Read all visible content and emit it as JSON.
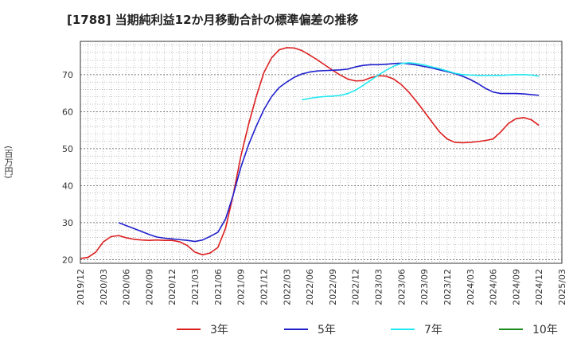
{
  "chart_data": {
    "type": "line",
    "title": "[1788]  当期純利益12か月移動合計の標準偏差の推移",
    "ylabel": "(百万円)",
    "xlabel": "",
    "ylim": [
      19,
      79
    ],
    "yticks": [
      20,
      30,
      40,
      50,
      60,
      70
    ],
    "xticks": [
      "2019/12",
      "2020/03",
      "2020/06",
      "2020/09",
      "2020/12",
      "2021/03",
      "2021/06",
      "2021/09",
      "2021/12",
      "2022/03",
      "2022/06",
      "2022/09",
      "2022/12",
      "2023/03",
      "2023/06",
      "2023/09",
      "2023/12",
      "2024/03",
      "2024/06",
      "2024/09",
      "2024/12",
      "2025/03"
    ],
    "grid": true,
    "series": [
      {
        "name": "3年",
        "color": "#dd1f1f",
        "points": [
          [
            0,
            20.3
          ],
          [
            1,
            20.6
          ],
          [
            2,
            22
          ],
          [
            3,
            24.8
          ],
          [
            4,
            26.2
          ],
          [
            5,
            26.5
          ],
          [
            6,
            25.9
          ],
          [
            7,
            25.5
          ],
          [
            8,
            25.3
          ],
          [
            9,
            25.2
          ],
          [
            10,
            25.3
          ],
          [
            11,
            25.2
          ],
          [
            12,
            25.2
          ],
          [
            13,
            24.8
          ],
          [
            14,
            23.8
          ],
          [
            15,
            22
          ],
          [
            16,
            21.3
          ],
          [
            17,
            21.8
          ],
          [
            18,
            23.3
          ],
          [
            19,
            28.5
          ],
          [
            20,
            37.5
          ],
          [
            21,
            48
          ],
          [
            22,
            56.5
          ],
          [
            23,
            64
          ],
          [
            24,
            70.5
          ],
          [
            25,
            74.5
          ],
          [
            26,
            76.7
          ],
          [
            27,
            77.3
          ],
          [
            28,
            77.2
          ],
          [
            29,
            76.5
          ],
          [
            30,
            75.3
          ],
          [
            31,
            74
          ],
          [
            32,
            72.6
          ],
          [
            33,
            71.2
          ],
          [
            34,
            69.9
          ],
          [
            35,
            68.8
          ],
          [
            36,
            68.3
          ],
          [
            37,
            68.4
          ],
          [
            38,
            69.2
          ],
          [
            39,
            69.7
          ],
          [
            40,
            69.6
          ],
          [
            41,
            68.8
          ],
          [
            42,
            67.3
          ],
          [
            43,
            65.2
          ],
          [
            44,
            62.7
          ],
          [
            45,
            60
          ],
          [
            46,
            57.2
          ],
          [
            47,
            54.5
          ],
          [
            48,
            52.6
          ],
          [
            49,
            51.7
          ],
          [
            50,
            51.6
          ],
          [
            51,
            51.7
          ],
          [
            52,
            51.9
          ],
          [
            53,
            52.2
          ],
          [
            54,
            52.6
          ],
          [
            55,
            54.5
          ],
          [
            56,
            56.8
          ],
          [
            57,
            58.1
          ],
          [
            58,
            58.4
          ],
          [
            59,
            57.8
          ],
          [
            60,
            56.3
          ]
        ]
      },
      {
        "name": "5年",
        "color": "#1f1fcc",
        "points": [
          [
            5,
            30
          ],
          [
            6,
            29.2
          ],
          [
            7,
            28.4
          ],
          [
            8,
            27.6
          ],
          [
            9,
            26.8
          ],
          [
            10,
            26.1
          ],
          [
            11,
            25.8
          ],
          [
            12,
            25.6
          ],
          [
            13,
            25.4
          ],
          [
            14,
            25.2
          ],
          [
            15,
            24.9
          ],
          [
            16,
            25.3
          ],
          [
            17,
            26.3
          ],
          [
            18,
            27.4
          ],
          [
            19,
            31
          ],
          [
            20,
            37.5
          ],
          [
            21,
            45
          ],
          [
            22,
            51
          ],
          [
            23,
            56
          ],
          [
            24,
            60.5
          ],
          [
            25,
            64
          ],
          [
            26,
            66.5
          ],
          [
            27,
            68
          ],
          [
            28,
            69.3
          ],
          [
            29,
            70.2
          ],
          [
            30,
            70.7
          ],
          [
            31,
            71
          ],
          [
            32,
            71.1
          ],
          [
            33,
            71.2
          ],
          [
            34,
            71.3
          ],
          [
            35,
            71.5
          ],
          [
            36,
            72.1
          ],
          [
            37,
            72.5
          ],
          [
            38,
            72.7
          ],
          [
            39,
            72.7
          ],
          [
            40,
            72.8
          ],
          [
            41,
            73
          ],
          [
            42,
            73.1
          ],
          [
            43,
            72.9
          ],
          [
            44,
            72.6
          ],
          [
            45,
            72.2
          ],
          [
            46,
            71.8
          ],
          [
            47,
            71.3
          ],
          [
            48,
            70.8
          ],
          [
            49,
            70.3
          ],
          [
            50,
            69.6
          ],
          [
            51,
            68.7
          ],
          [
            52,
            67.6
          ],
          [
            53,
            66.3
          ],
          [
            54,
            65.3
          ],
          [
            55,
            64.9
          ],
          [
            56,
            64.9
          ],
          [
            57,
            64.9
          ],
          [
            58,
            64.8
          ],
          [
            59,
            64.6
          ],
          [
            60,
            64.4
          ]
        ]
      },
      {
        "name": "7年",
        "color": "#22e8f0",
        "points": [
          [
            29,
            63.2
          ],
          [
            30,
            63.6
          ],
          [
            31,
            63.9
          ],
          [
            32,
            64.1
          ],
          [
            33,
            64.2
          ],
          [
            34,
            64.4
          ],
          [
            35,
            64.9
          ],
          [
            36,
            65.8
          ],
          [
            37,
            67.1
          ],
          [
            38,
            68.5
          ],
          [
            39,
            69.9
          ],
          [
            40,
            71.2
          ],
          [
            41,
            72.3
          ],
          [
            42,
            73
          ],
          [
            43,
            73.2
          ],
          [
            44,
            73
          ],
          [
            45,
            72.6
          ],
          [
            46,
            72.1
          ],
          [
            47,
            71.6
          ],
          [
            48,
            71
          ],
          [
            49,
            70.4
          ],
          [
            50,
            70
          ],
          [
            51,
            69.9
          ],
          [
            52,
            69.8
          ],
          [
            53,
            69.8
          ],
          [
            54,
            69.8
          ],
          [
            55,
            69.8
          ],
          [
            56,
            69.9
          ],
          [
            57,
            70
          ],
          [
            58,
            70
          ],
          [
            59,
            69.9
          ],
          [
            60,
            69.6
          ]
        ]
      },
      {
        "name": "10年",
        "color": "#1a8a1a",
        "points": []
      }
    ]
  }
}
